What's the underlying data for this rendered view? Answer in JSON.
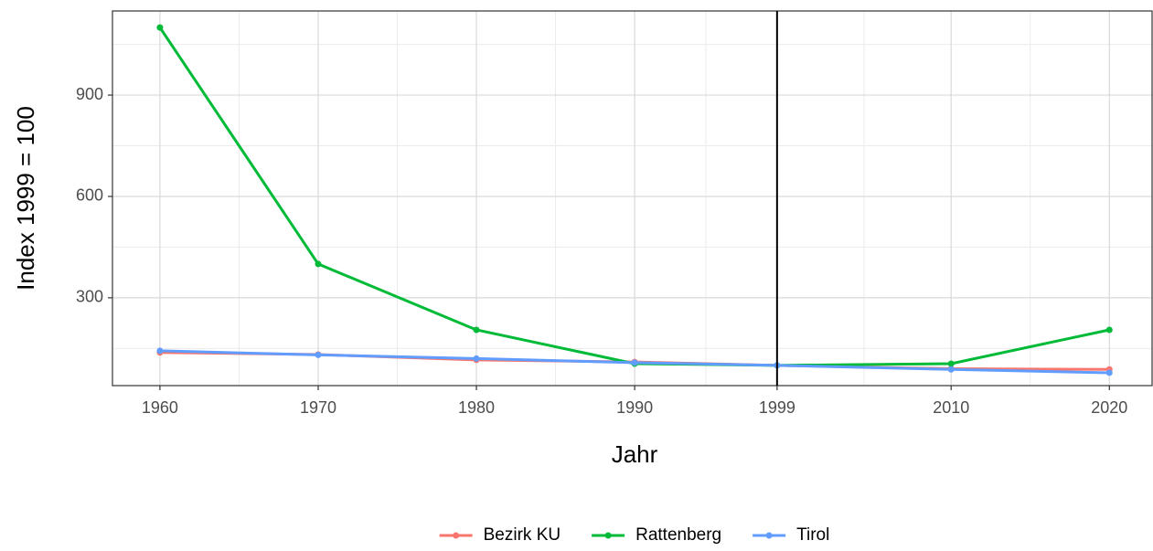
{
  "chart_data": {
    "type": "line",
    "x_label": "Jahr",
    "y_label": "Index 1999 = 100",
    "x": [
      1960,
      1970,
      1980,
      1990,
      1999,
      2010,
      2020
    ],
    "series": [
      {
        "name": "Bezirk KU",
        "color": "#F8766D",
        "values": [
          138,
          132,
          116,
          110,
          100,
          90,
          88
        ]
      },
      {
        "name": "Rattenberg",
        "color": "#00BA38",
        "values": [
          1100,
          400,
          205,
          105,
          100,
          105,
          205
        ]
      },
      {
        "name": "Tirol",
        "color": "#619CFF",
        "values": [
          143,
          131,
          120,
          108,
          100,
          88,
          78
        ]
      }
    ],
    "xlim": [
      1957,
      2022.7
    ],
    "xticks": [
      1960,
      1970,
      1980,
      1990,
      1999,
      2010,
      2020
    ],
    "ylim": [
      40,
      1149
    ],
    "yticks": [
      300,
      600,
      900
    ],
    "vline": 1999,
    "grid": true,
    "legend": "bottom"
  }
}
